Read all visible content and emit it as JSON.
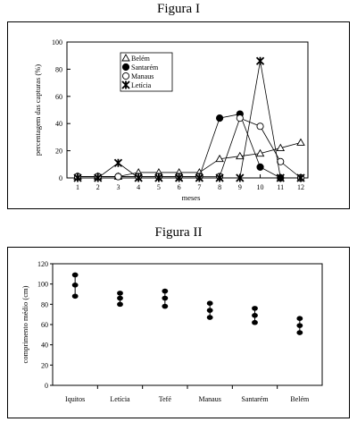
{
  "figures": [
    {
      "title": "Figura I",
      "chart_data": {
        "type": "line",
        "xlabel": "meses",
        "ylabel": "percentagem das capturas (%)",
        "x": [
          1,
          2,
          3,
          4,
          5,
          6,
          7,
          8,
          9,
          10,
          11,
          12
        ],
        "xlim": [
          1,
          12
        ],
        "ylim": [
          0,
          100
        ],
        "yticks": [
          0,
          20,
          40,
          60,
          80,
          100
        ],
        "legend_position": "top-left",
        "series": [
          {
            "name": "Belém",
            "marker": "triangle-open",
            "values": [
              1,
              1,
              1,
              4,
              4,
              4,
              4,
              14,
              16,
              18,
              22,
              26
            ]
          },
          {
            "name": "Santarém",
            "marker": "circle-filled",
            "values": [
              1,
              1,
              1,
              1,
              1,
              1,
              1,
              44,
              47,
              8,
              0,
              0
            ]
          },
          {
            "name": "Manaus",
            "marker": "circle-open",
            "values": [
              1,
              1,
              1,
              1,
              1,
              1,
              1,
              1,
              44,
              38,
              12,
              0
            ]
          },
          {
            "name": "Letícia",
            "marker": "x-star",
            "values": [
              0,
              0,
              11,
              0,
              0,
              0,
              0,
              0,
              0,
              86,
              0,
              0
            ]
          }
        ]
      }
    },
    {
      "title": "Figura II",
      "chart_data": {
        "type": "scatter",
        "xlabel": "",
        "ylabel": "comprimento médio (cm)",
        "categories": [
          "Iquitos",
          "Letícia",
          "Tefé",
          "Manaus",
          "Santarém",
          "Belém"
        ],
        "ylim": [
          0,
          120
        ],
        "yticks": [
          0,
          20,
          40,
          60,
          80,
          100,
          120
        ],
        "series": [
          {
            "name": "",
            "values": [
              [
                88,
                99,
                109
              ],
              [
                80,
                86,
                91
              ],
              [
                78,
                86,
                93
              ],
              [
                67,
                74,
                81
              ],
              [
                62,
                69,
                76
              ],
              [
                52,
                59,
                66
              ]
            ]
          }
        ]
      }
    }
  ]
}
